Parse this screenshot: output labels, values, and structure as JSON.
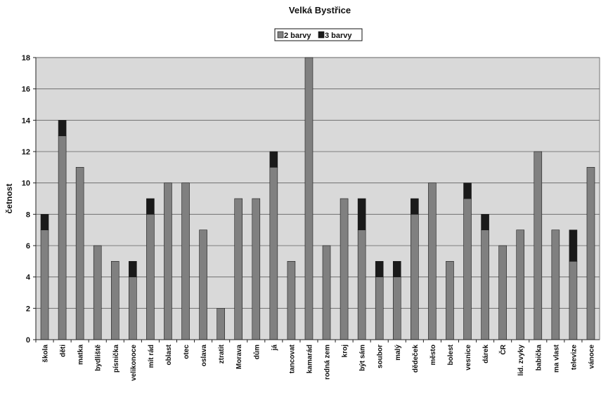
{
  "chart_data": {
    "type": "bar",
    "stacked": true,
    "title": "Velká Bystřice",
    "xlabel": "",
    "ylabel": "četnost",
    "ylim": [
      0,
      18
    ],
    "yticks": [
      0,
      2,
      4,
      6,
      8,
      10,
      12,
      14,
      16,
      18
    ],
    "grid": true,
    "legend_position": "top-center",
    "categories": [
      "škola",
      "děti",
      "matka",
      "bydliště",
      "písnička",
      "velikonoce",
      "mít rád",
      "oblast",
      "otec",
      "oslava",
      "ztratit",
      "Morava",
      "dům",
      "já",
      "tancovat",
      "kamarád",
      "rodná zem",
      "kroj",
      "být sám",
      "soubor",
      "malý",
      "dědeček",
      "město",
      "bolest",
      "vesnice",
      "dárek",
      "ČR",
      "lid. zvyky",
      "babička",
      "ma vlast",
      "televize",
      "vánoce"
    ],
    "series": [
      {
        "name": "2 barvy",
        "color": "#808080",
        "values": [
          7,
          13,
          11,
          6,
          5,
          4,
          8,
          10,
          10,
          7,
          2,
          9,
          9,
          11,
          5,
          18,
          6,
          9,
          7,
          4,
          4,
          8,
          10,
          5,
          9,
          7,
          6,
          7,
          12,
          7,
          5,
          11
        ]
      },
      {
        "name": "3 barvy",
        "color": "#1a1a1a",
        "values": [
          1,
          1,
          0,
          0,
          0,
          1,
          1,
          0,
          0,
          0,
          0,
          0,
          0,
          1,
          0,
          0,
          0,
          0,
          2,
          1,
          1,
          1,
          0,
          0,
          1,
          1,
          0,
          0,
          0,
          0,
          2,
          0
        ]
      }
    ],
    "plot_background": "#d9d9d9",
    "grid_color": "#606060"
  }
}
